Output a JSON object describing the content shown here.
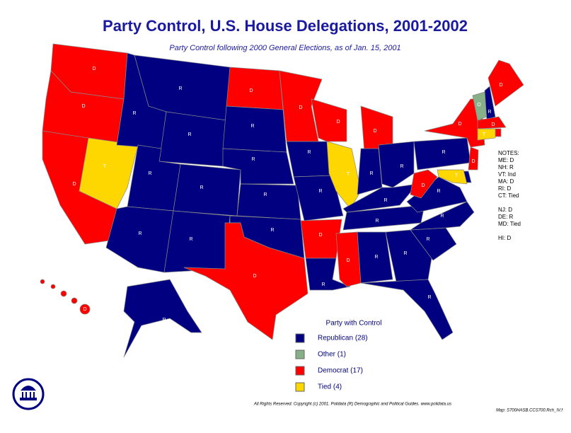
{
  "title": "Party Control, U.S. House Delegations, 2001-2002",
  "subtitle": "Party Control following 2000 General Elections, as of Jan. 15, 2001",
  "states": [
    {
      "label": "D",
      "color": "#ff0000"
    },
    {
      "label": "D",
      "color": "#ff0000"
    },
    {
      "label": "D",
      "color": "#ff0000"
    },
    {
      "label": "T",
      "color": "#ffd700"
    },
    {
      "label": "R",
      "color": "#000080"
    },
    {
      "label": "R",
      "color": "#000080"
    },
    {
      "label": "R",
      "color": "#000080"
    },
    {
      "label": "R",
      "color": "#000080"
    },
    {
      "label": "R",
      "color": "#000080"
    },
    {
      "label": "R",
      "color": "#000080"
    },
    {
      "label": "R",
      "color": "#000080"
    },
    {
      "label": "D",
      "color": "#ff0000"
    },
    {
      "label": "R",
      "color": "#000080"
    },
    {
      "label": "R",
      "color": "#000080"
    },
    {
      "label": "R",
      "color": "#000080"
    },
    {
      "label": "R",
      "color": "#000080"
    },
    {
      "label": "D",
      "color": "#ff0000"
    },
    {
      "label": "D",
      "color": "#ff0000"
    },
    {
      "label": "R",
      "color": "#000080"
    },
    {
      "label": "R",
      "color": "#000080"
    },
    {
      "label": "D",
      "color": "#ff0000"
    },
    {
      "label": "R",
      "color": "#000080"
    },
    {
      "label": "D",
      "color": "#ff0000"
    },
    {
      "label": "T",
      "color": "#ffd700"
    },
    {
      "label": "D",
      "color": "#ff0000"
    },
    {
      "label": "R",
      "color": "#000080"
    },
    {
      "label": "R",
      "color": "#000080"
    },
    {
      "label": "R",
      "color": "#000080"
    },
    {
      "label": "R",
      "color": "#000080"
    },
    {
      "label": "D",
      "color": "#ff0000"
    },
    {
      "label": "R",
      "color": "#000080"
    },
    {
      "label": "R",
      "color": "#000080"
    },
    {
      "label": "R",
      "color": "#000080"
    },
    {
      "label": "R",
      "color": "#000080"
    },
    {
      "label": "R",
      "color": "#000080"
    },
    {
      "label": "R",
      "color": "#000080"
    },
    {
      "label": "D",
      "color": "#ff0000"
    },
    {
      "label": "R",
      "color": "#000080"
    },
    {
      "label": "D",
      "color": "#ff0000"
    },
    {
      "label": "O",
      "color": "#88b088"
    },
    {
      "label": "R",
      "color": "#000080"
    },
    {
      "label": "D",
      "color": "#ff0000"
    },
    {
      "label": "D",
      "color": "#ff0000"
    },
    {
      "color": "#ff0000"
    },
    {
      "label": "T",
      "color": "#ffd700"
    },
    {
      "label": "D",
      "color": "#ff0000"
    },
    {
      "color": "#000080"
    },
    {
      "label": "T",
      "color": "#ffd700"
    },
    {
      "label": "R",
      "color": "#000080"
    },
    {
      "label": "D",
      "color": "#ff0000"
    }
  ],
  "notes": [
    "NOTES:",
    "ME: D",
    "NH: R",
    "VT: Ind",
    "MA: D",
    "RI: D",
    "CT: Tied",
    "NJ: D",
    "DE: R",
    "MD: Tied",
    "HI: D"
  ],
  "legend": {
    "title": "Party with Control",
    "items": [
      {
        "label": "Republican (28)",
        "color": "#000080"
      },
      {
        "label": "Other (1)",
        "color": "#88b088"
      },
      {
        "label": "Democrat (17)",
        "color": "#ff0000"
      },
      {
        "label": "Tied (4)",
        "color": "#ffd700"
      }
    ]
  },
  "footer": [
    "All Rights Reserved. Copyright (c) 2001. Polidata (R) Demographic and Political Guides. www.polidata.us",
    "Map: S700HASB.CCS700.Rch_IV.f"
  ]
}
